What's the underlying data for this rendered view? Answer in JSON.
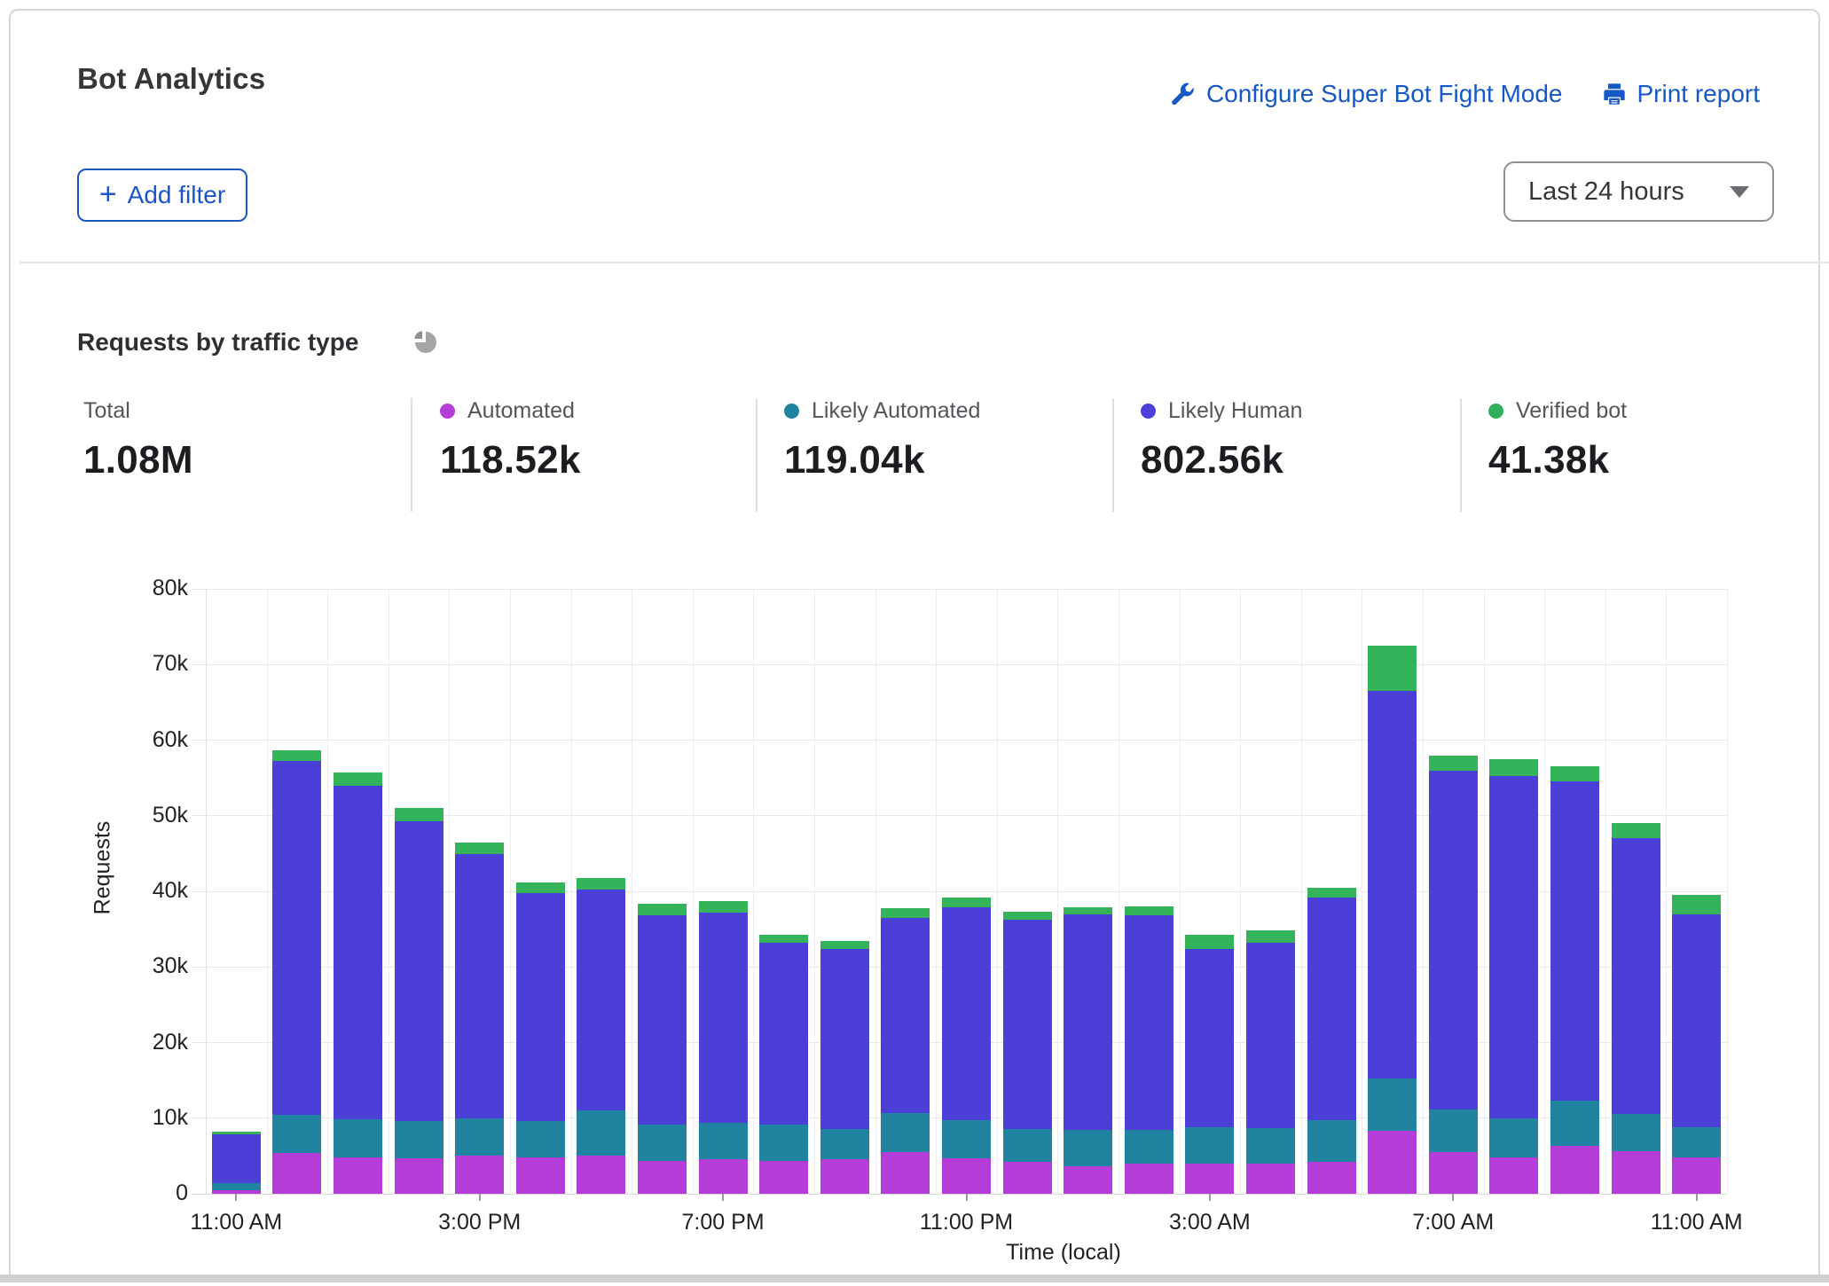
{
  "header": {
    "title": "Bot Analytics",
    "configure_link": "Configure Super Bot Fight Mode",
    "print_link": "Print report",
    "add_filter_label": "Add filter",
    "time_range_value": "Last 24 hours"
  },
  "section": {
    "title": "Requests by traffic type"
  },
  "stats": [
    {
      "label": "Total",
      "value": "1.08M",
      "color": null
    },
    {
      "label": "Automated",
      "value": "118.52k",
      "color": "#b33dd6"
    },
    {
      "label": "Likely Automated",
      "value": "119.04k",
      "color": "#2083a0"
    },
    {
      "label": "Likely Human",
      "value": "802.56k",
      "color": "#4f3ed9"
    },
    {
      "label": "Verified bot",
      "value": "41.38k",
      "color": "#2fb05a"
    }
  ],
  "chart_data": {
    "type": "bar",
    "stacked": true,
    "title": "Requests by traffic type",
    "xlabel": "Time (local)",
    "ylabel": "Requests",
    "ylim": [
      0,
      80000
    ],
    "grid": true,
    "y_ticks": [
      "0",
      "10k",
      "20k",
      "30k",
      "40k",
      "50k",
      "60k",
      "70k",
      "80k"
    ],
    "x_tick_labels": [
      "11:00 AM",
      "3:00 PM",
      "7:00 PM",
      "11:00 PM",
      "3:00 AM",
      "7:00 AM",
      "11:00 AM"
    ],
    "x_tick_indices": [
      0,
      4,
      8,
      12,
      16,
      20,
      24
    ],
    "categories": [
      "11:00 AM",
      "12:00 PM",
      "1:00 PM",
      "2:00 PM",
      "3:00 PM",
      "4:00 PM",
      "5:00 PM",
      "6:00 PM",
      "7:00 PM",
      "8:00 PM",
      "9:00 PM",
      "10:00 PM",
      "11:00 PM",
      "12:00 AM",
      "1:00 AM",
      "2:00 AM",
      "3:00 AM",
      "4:00 AM",
      "5:00 AM",
      "6:00 AM",
      "7:00 AM",
      "8:00 AM",
      "9:00 AM",
      "10:00 AM",
      "11:00 AM"
    ],
    "series": [
      {
        "name": "Automated",
        "color": "#b33dd6",
        "values": [
          500,
          5400,
          4800,
          4700,
          5000,
          4800,
          5000,
          4400,
          4600,
          4300,
          4600,
          5500,
          4700,
          4200,
          3600,
          4000,
          4000,
          4000,
          4200,
          8300,
          5500,
          4800,
          6300,
          5600,
          4800
        ]
      },
      {
        "name": "Likely Automated",
        "color": "#2083a0",
        "values": [
          900,
          5100,
          5000,
          4900,
          5000,
          4800,
          6000,
          4800,
          4800,
          4900,
          4000,
          5200,
          5000,
          4400,
          4900,
          4500,
          4800,
          4700,
          5500,
          7000,
          5700,
          5200,
          6000,
          5000,
          4000
        ]
      },
      {
        "name": "Likely Human",
        "color": "#4b3fd8",
        "values": [
          6500,
          46800,
          44200,
          39700,
          34900,
          30200,
          29200,
          27600,
          27800,
          24000,
          23800,
          25800,
          28200,
          27600,
          28400,
          28300,
          23600,
          24500,
          29500,
          51200,
          44800,
          45300,
          42200,
          36400,
          28200
        ]
      },
      {
        "name": "Verified bot",
        "color": "#33b35a",
        "values": [
          300,
          1300,
          1700,
          1700,
          1500,
          1400,
          1600,
          1600,
          1500,
          1100,
          1000,
          1300,
          1300,
          1100,
          1000,
          1200,
          1800,
          1600,
          1300,
          6000,
          2000,
          2200,
          2000,
          2000,
          2500
        ]
      }
    ]
  }
}
